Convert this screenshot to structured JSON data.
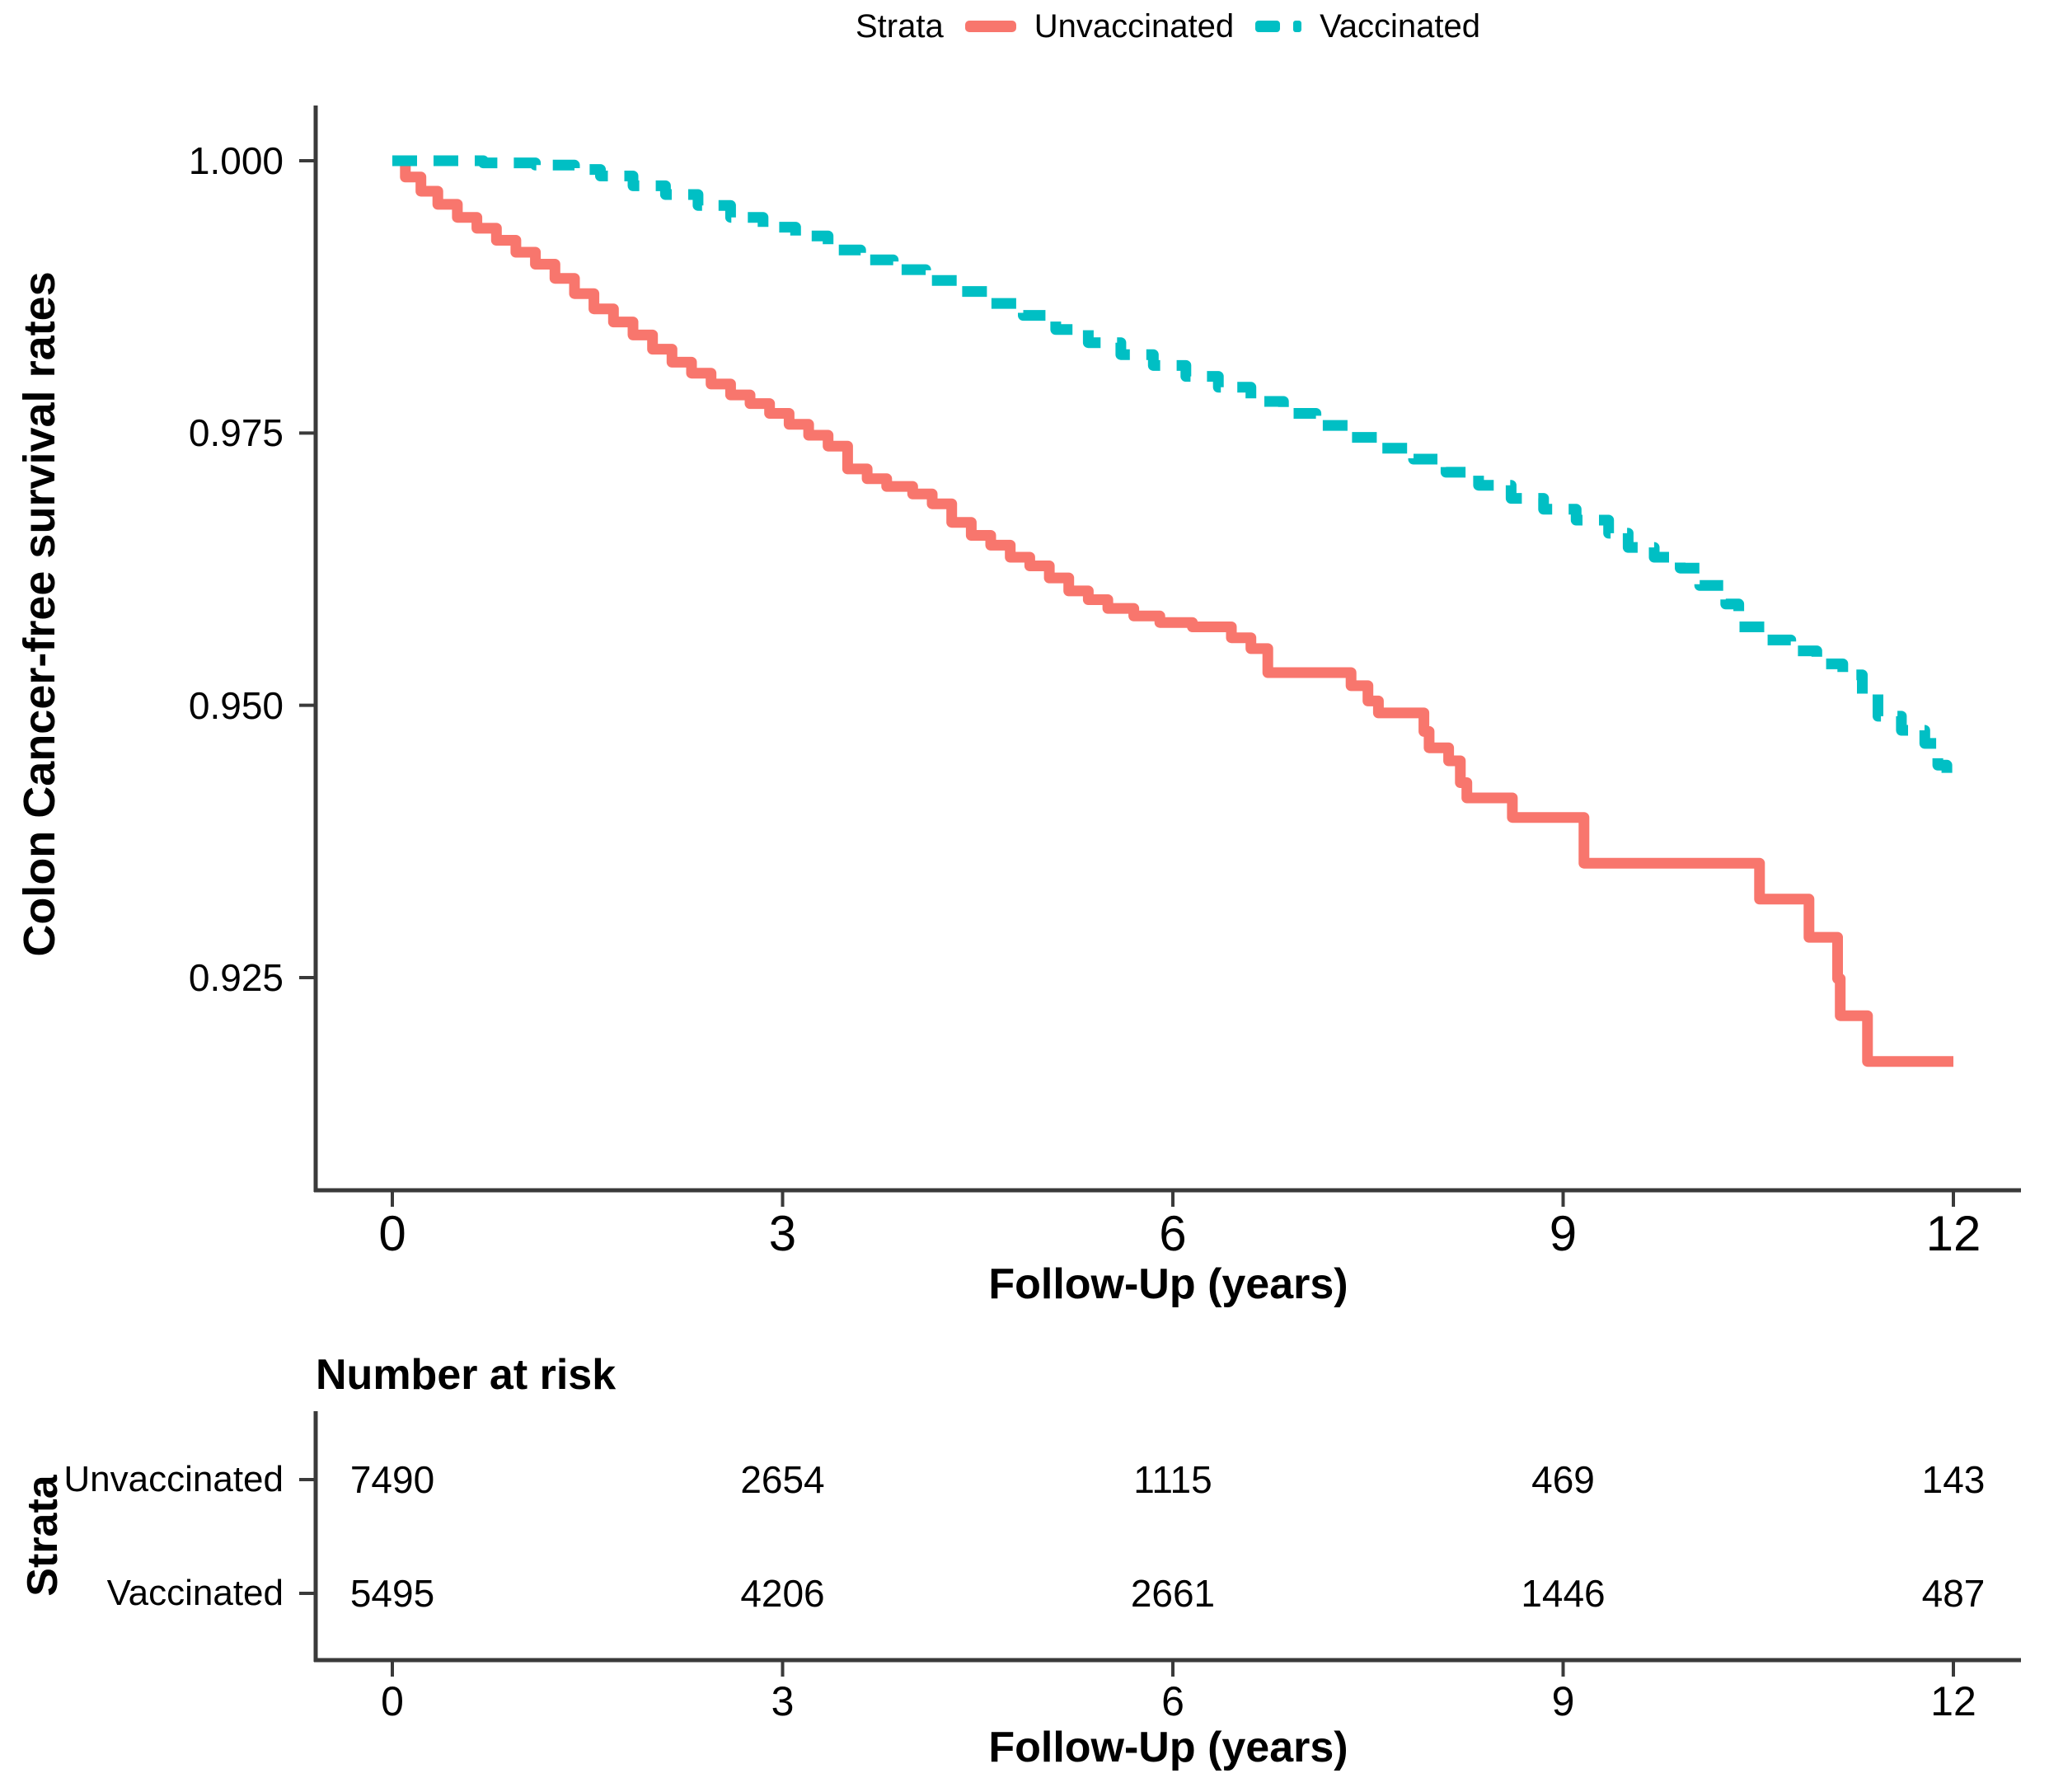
{
  "figure": {
    "background": "#ffffff",
    "text_color": "#000000",
    "axis_color": "#3a3a3a"
  },
  "legend": {
    "title": "Strata",
    "entries": [
      {
        "label": "Unvaccinated",
        "color": "#F8766D",
        "style": "solid"
      },
      {
        "label": "Vaccinated",
        "color": "#00BFC4",
        "style": "dashed"
      }
    ]
  },
  "chart_data": {
    "type": "line",
    "subtype": "kaplan-meier-step",
    "title": "",
    "xlabel": "Follow-Up (years)",
    "ylabel": "Colon Cancer-free survival rates",
    "legend_position": "top",
    "grid": false,
    "xlim": [
      0,
      12
    ],
    "ylim": [
      0.906,
      1.005
    ],
    "x_ticks": [
      "0",
      "3",
      "6",
      "9",
      "12"
    ],
    "x_tick_values": [
      0,
      3,
      6,
      9,
      12
    ],
    "y_ticks": [
      "1.000",
      "0.975",
      "0.950",
      "0.925"
    ],
    "y_tick_values": [
      1.0,
      0.975,
      0.95,
      0.925
    ],
    "series": [
      {
        "name": "Unvaccinated",
        "color": "#F8766D",
        "dash": "solid",
        "points": [
          [
            0,
            1.0
          ],
          [
            0.1,
            0.9985
          ],
          [
            0.22,
            0.9972
          ],
          [
            0.35,
            0.996
          ],
          [
            0.5,
            0.9948
          ],
          [
            0.65,
            0.9938
          ],
          [
            0.8,
            0.9927
          ],
          [
            0.95,
            0.9916
          ],
          [
            1.1,
            0.9905
          ],
          [
            1.25,
            0.9892
          ],
          [
            1.4,
            0.9878
          ],
          [
            1.55,
            0.9864
          ],
          [
            1.7,
            0.9852
          ],
          [
            1.85,
            0.984
          ],
          [
            2.0,
            0.9827
          ],
          [
            2.15,
            0.9815
          ],
          [
            2.3,
            0.9805
          ],
          [
            2.45,
            0.9795
          ],
          [
            2.6,
            0.9785
          ],
          [
            2.75,
            0.9777
          ],
          [
            2.9,
            0.9768
          ],
          [
            3.05,
            0.9758
          ],
          [
            3.2,
            0.9748
          ],
          [
            3.35,
            0.9738
          ],
          [
            3.5,
            0.9717
          ],
          [
            3.65,
            0.9708
          ],
          [
            3.8,
            0.9701
          ],
          [
            4.0,
            0.9694
          ],
          [
            4.15,
            0.9685
          ],
          [
            4.3,
            0.9668
          ],
          [
            4.45,
            0.9656
          ],
          [
            4.6,
            0.9647
          ],
          [
            4.75,
            0.9636
          ],
          [
            4.9,
            0.9628
          ],
          [
            5.05,
            0.9617
          ],
          [
            5.2,
            0.9605
          ],
          [
            5.35,
            0.9597
          ],
          [
            5.5,
            0.9589
          ],
          [
            5.7,
            0.9582
          ],
          [
            5.9,
            0.9576
          ],
          [
            6.15,
            0.9572
          ],
          [
            6.45,
            0.9562
          ],
          [
            6.6,
            0.9552
          ],
          [
            6.73,
            0.953
          ],
          [
            7.37,
            0.9518
          ],
          [
            7.5,
            0.9504
          ],
          [
            7.58,
            0.9493
          ],
          [
            7.93,
            0.9476
          ],
          [
            7.97,
            0.9461
          ],
          [
            8.12,
            0.9449
          ],
          [
            8.21,
            0.9429
          ],
          [
            8.26,
            0.9415
          ],
          [
            8.61,
            0.9397
          ],
          [
            9.16,
            0.9355
          ],
          [
            10.51,
            0.9322
          ],
          [
            10.89,
            0.9287
          ],
          [
            11.11,
            0.9249
          ],
          [
            11.13,
            0.9215
          ],
          [
            11.34,
            0.9173
          ],
          [
            12.0,
            0.9173
          ]
        ]
      },
      {
        "name": "Vaccinated",
        "color": "#00BFC4",
        "dash": "dashed",
        "points": [
          [
            0,
            1.0
          ],
          [
            0.7,
            0.9998
          ],
          [
            1.1,
            0.9996
          ],
          [
            1.4,
            0.9992
          ],
          [
            1.6,
            0.9986
          ],
          [
            1.85,
            0.9977
          ],
          [
            2.1,
            0.9969
          ],
          [
            2.35,
            0.9959
          ],
          [
            2.6,
            0.9948
          ],
          [
            2.85,
            0.9939
          ],
          [
            3.1,
            0.9931
          ],
          [
            3.35,
            0.9918
          ],
          [
            3.6,
            0.9909
          ],
          [
            3.85,
            0.99
          ],
          [
            4.1,
            0.989
          ],
          [
            4.35,
            0.988
          ],
          [
            4.6,
            0.9869
          ],
          [
            4.85,
            0.9858
          ],
          [
            5.1,
            0.9845
          ],
          [
            5.35,
            0.9833
          ],
          [
            5.6,
            0.9822
          ],
          [
            5.85,
            0.9812
          ],
          [
            6.1,
            0.9802
          ],
          [
            6.35,
            0.9792
          ],
          [
            6.6,
            0.9779
          ],
          [
            6.85,
            0.9768
          ],
          [
            7.1,
            0.9757
          ],
          [
            7.35,
            0.9746
          ],
          [
            7.6,
            0.9736
          ],
          [
            7.85,
            0.9726
          ],
          [
            8.1,
            0.9714
          ],
          [
            8.35,
            0.9702
          ],
          [
            8.6,
            0.969
          ],
          [
            8.85,
            0.968
          ],
          [
            9.1,
            0.967
          ],
          [
            9.35,
            0.9658
          ],
          [
            9.5,
            0.9645
          ],
          [
            9.7,
            0.9636
          ],
          [
            9.9,
            0.9626
          ],
          [
            10.05,
            0.961
          ],
          [
            10.25,
            0.9593
          ],
          [
            10.35,
            0.9572
          ],
          [
            10.55,
            0.956
          ],
          [
            10.75,
            0.955
          ],
          [
            10.95,
            0.9538
          ],
          [
            11.15,
            0.9528
          ],
          [
            11.3,
            0.951
          ],
          [
            11.42,
            0.949
          ],
          [
            11.6,
            0.9477
          ],
          [
            11.78,
            0.9465
          ],
          [
            11.88,
            0.9445
          ],
          [
            11.95,
            0.9438
          ]
        ]
      }
    ]
  },
  "risk_table": {
    "title": "Number at risk",
    "axis_label": "Strata",
    "xlabel": "Follow-Up (years)",
    "times": [
      "0",
      "3",
      "6",
      "9",
      "12"
    ],
    "time_values": [
      0,
      3,
      6,
      9,
      12
    ],
    "rows": [
      {
        "label": "Unvaccinated",
        "values": [
          "7490",
          "2654",
          "1115",
          "469",
          "143"
        ]
      },
      {
        "label": "Vaccinated",
        "values": [
          "5495",
          "4206",
          "2661",
          "1446",
          "487"
        ]
      }
    ]
  }
}
